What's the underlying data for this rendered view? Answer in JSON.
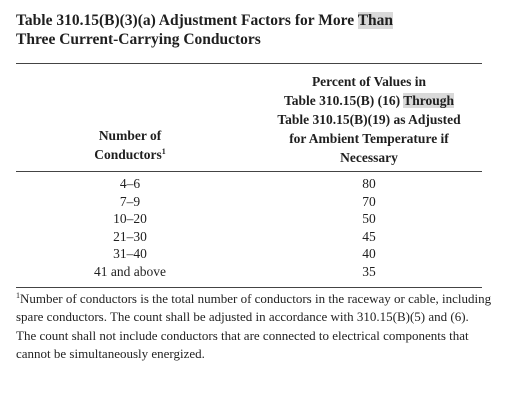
{
  "title": {
    "part1": "Table 310.15(B)(3)(a)  Adjustment Factors for More ",
    "highlight": "Than",
    "part2": "Three Current-Carrying Conductors"
  },
  "headers": {
    "left_line1": "Number of",
    "left_line2": "Conductors",
    "left_sup": "1",
    "right_line1": "Percent of Values in",
    "right_line2_pre": "Table 310.15(B) (16) ",
    "right_line2_highlight": "Through",
    "right_line3": "Table 310.15(B)(19) as Adjusted",
    "right_line4": "for Ambient Temperature if",
    "right_line5": "Necessary"
  },
  "rows": [
    {
      "conductors": "4–6",
      "percent": "80"
    },
    {
      "conductors": "7–9",
      "percent": "70"
    },
    {
      "conductors": "10–20",
      "percent": "50"
    },
    {
      "conductors": "21–30",
      "percent": "45"
    },
    {
      "conductors": "31–40",
      "percent": "40"
    },
    {
      "conductors": "41 and above",
      "percent": "35"
    }
  ],
  "footnote": {
    "marker": "1",
    "text": "Number of conductors is the total number of conductors in the raceway or cable, including spare conductors. The count shall be adjusted in accordance with 310.15(B)(5) and (6). The count shall not include conductors that are connected to electrical components that cannot be simultaneously energized."
  }
}
